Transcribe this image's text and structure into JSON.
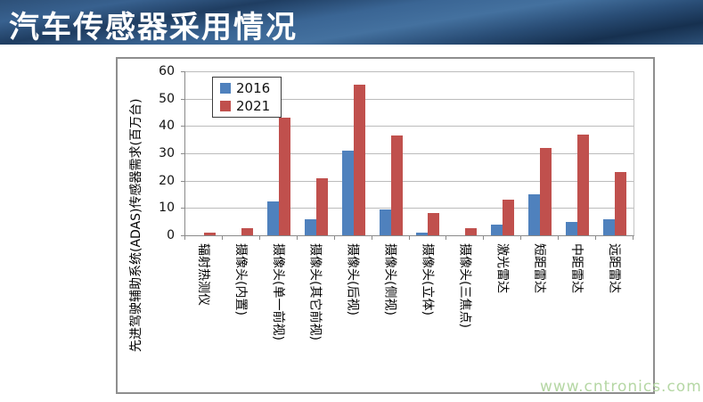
{
  "header": {
    "title": "汽车传感器采用情况"
  },
  "watermark": "www.cntronics.com",
  "colors": {
    "series_2016": "#4f81bd",
    "series_2021": "#c0504d",
    "banner_blue": "#3a6594",
    "watermark_green": "#b5d7a4",
    "gridline": "#bcbcbc"
  },
  "chart_data": {
    "type": "bar",
    "title": "",
    "xlabel": "",
    "ylabel": "先进驾驶辅助系统(ADAS)传感器需求(百万台)",
    "ylim": [
      0,
      60
    ],
    "ytick_step": 10,
    "grid": true,
    "legend_position": "top-left-inside",
    "categories": [
      "辐射热测仪",
      "摄像头(内置)",
      "摄像头(单一前视)",
      "摄像头(其它前视)",
      "摄像头(后视)",
      "摄像头(侧视)",
      "摄像头(立体)",
      "摄像头(三焦点)",
      "激光雷达",
      "短距雷达",
      "中距雷达",
      "远距雷达"
    ],
    "series": [
      {
        "name": "2016",
        "color": "#4f81bd",
        "values": [
          0,
          0,
          12.5,
          6,
          31,
          9.5,
          1,
          0,
          4,
          15,
          5,
          6
        ]
      },
      {
        "name": "2021",
        "color": "#c0504d",
        "values": [
          1,
          2.5,
          43,
          21,
          55,
          36.5,
          8,
          2.5,
          13,
          32,
          37,
          23
        ]
      }
    ]
  }
}
